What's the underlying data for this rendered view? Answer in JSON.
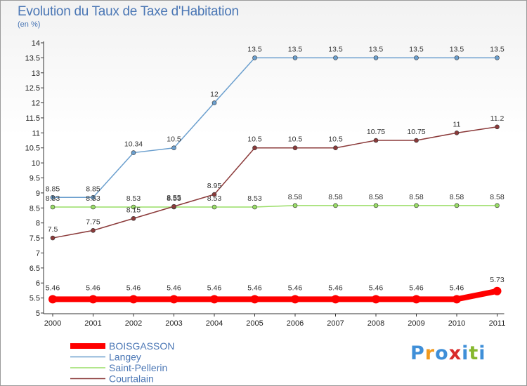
{
  "chart_data": {
    "type": "line",
    "title": "Evolution du Taux de Taxe d'Habitation",
    "subtitle": "(en %)",
    "categories": [
      "2000",
      "2001",
      "2002",
      "2003",
      "2004",
      "2005",
      "2006",
      "2007",
      "2008",
      "2009",
      "2010",
      "2011"
    ],
    "ylim": [
      5,
      14
    ],
    "yticks": [
      5,
      5.5,
      6,
      6.5,
      7,
      7.5,
      8,
      8.5,
      9,
      9.5,
      10,
      10.5,
      11,
      11.5,
      12,
      12.5,
      13,
      13.5,
      14
    ],
    "ytick_labels": [
      "5",
      "5.5",
      "6",
      "6.5",
      "7",
      "7.5",
      "8",
      "8.5",
      "9",
      "9.5",
      "10",
      "10.5",
      "11",
      "11.5",
      "12",
      "12.5",
      "13",
      "13.5",
      "14"
    ],
    "grid": false,
    "legend_position": "bottom-left",
    "series": [
      {
        "name": "BOISGASSON",
        "color": "#ff0000",
        "values": [
          5.46,
          5.46,
          5.46,
          5.46,
          5.46,
          5.46,
          5.46,
          5.46,
          5.46,
          5.46,
          5.46,
          5.73
        ],
        "labels": [
          "5.46",
          "5.46",
          "5.46",
          "5.46",
          "5.46",
          "5.46",
          "5.46",
          "5.46",
          "5.46",
          "5.46",
          "5.46",
          "5.73"
        ]
      },
      {
        "name": "Langey",
        "color": "#6b9fce",
        "values": [
          8.85,
          8.85,
          10.34,
          10.5,
          12,
          13.5,
          13.5,
          13.5,
          13.5,
          13.5,
          13.5,
          13.5
        ],
        "labels": [
          "8.85",
          "8.85",
          "10.34",
          "10.5",
          "12",
          "13.5",
          "13.5",
          "13.5",
          "13.5",
          "13.5",
          "13.5",
          "13.5"
        ]
      },
      {
        "name": "Saint-Pellerin",
        "color": "#99dd66",
        "values": [
          8.53,
          8.53,
          8.53,
          8.53,
          8.53,
          8.53,
          8.58,
          8.58,
          8.58,
          8.58,
          8.58,
          8.58
        ],
        "labels": [
          "8.53",
          "8.53",
          "8.53",
          "8.53",
          "8.53",
          "8.53",
          "8.58",
          "8.58",
          "8.58",
          "8.58",
          "8.58",
          "8.58"
        ]
      },
      {
        "name": "Courtalain",
        "color": "#8b3a3a",
        "values": [
          7.5,
          7.75,
          8.15,
          8.55,
          8.95,
          10.5,
          10.5,
          10.5,
          10.75,
          10.75,
          11,
          11.2
        ],
        "labels": [
          "7.5",
          "7.75",
          "8.15",
          "8.55",
          "8.95",
          "10.5",
          "10.5",
          "10.5",
          "10.75",
          "10.75",
          "11",
          "11.2"
        ]
      }
    ]
  },
  "logo": {
    "letters": [
      "P",
      "r",
      "o",
      "x",
      "i",
      "t",
      "i"
    ],
    "colors": [
      "#3f8fd8",
      "#f29a1e",
      "#3f8fd8",
      "#d92b2b",
      "#3f8fd8",
      "#86b82e",
      "#3f8fd8"
    ]
  }
}
